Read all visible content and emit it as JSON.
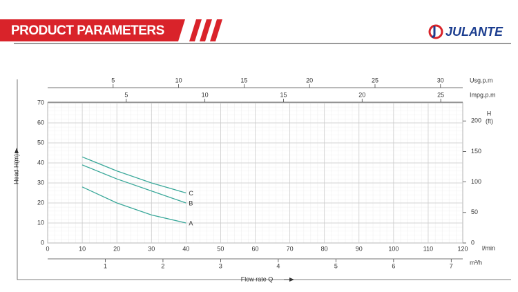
{
  "header": {
    "title": "PRODUCT PARAMETERS",
    "brand": "JULANTE"
  },
  "chart_data": {
    "type": "line",
    "y_label": "Head H(m)",
    "x_label": "Flow rate Q",
    "x_unit": "l/min",
    "y2_label": "H",
    "y2_unit": "(ft)",
    "x": [
      10,
      20,
      30,
      40
    ],
    "series": [
      {
        "name": "A",
        "color": "#3aa89a",
        "values": [
          28,
          20,
          14,
          10
        ]
      },
      {
        "name": "B",
        "color": "#3aa89a",
        "values": [
          39,
          32,
          26,
          20
        ]
      },
      {
        "name": "C",
        "color": "#3aa89a",
        "values": [
          43,
          36,
          30,
          25
        ]
      }
    ],
    "xlim": [
      0,
      120
    ],
    "xticks": [
      0,
      10,
      20,
      30,
      40,
      50,
      60,
      70,
      80,
      90,
      100,
      110,
      120
    ],
    "ylim": [
      0,
      70
    ],
    "yticks": [
      0,
      10,
      20,
      30,
      40,
      50,
      60,
      70
    ],
    "y2lim": [
      0,
      229.66
    ],
    "y2ticks": [
      0,
      50,
      100,
      150,
      200
    ],
    "grid": true,
    "extra_x_axes": [
      {
        "label": "Usg.p.m",
        "position": "top",
        "lim": [
          0,
          31.7
        ],
        "ticks": [
          5,
          10,
          15,
          20,
          25,
          30
        ]
      },
      {
        "label": "Impg.p.m",
        "position": "top",
        "lim": [
          0,
          26.4
        ],
        "ticks": [
          5,
          10,
          15,
          20,
          25
        ]
      },
      {
        "label": "m³/h",
        "position": "bottom",
        "lim": [
          0,
          7.2
        ],
        "ticks": [
          1,
          2,
          3,
          4,
          5,
          6,
          7
        ]
      }
    ]
  }
}
